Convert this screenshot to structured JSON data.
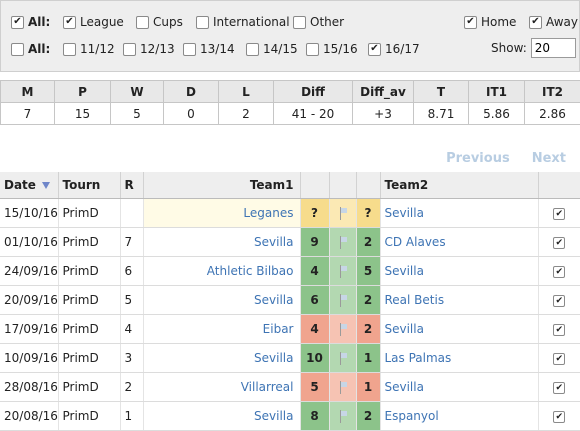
{
  "filters": {
    "row1": {
      "all_label": "All:",
      "league_label": "League",
      "cups_label": "Cups",
      "international_label": "International",
      "other_label": "Other",
      "home_label": "Home",
      "away_label": "Away"
    },
    "row2": {
      "all_label": "All:",
      "seasons": [
        "11/12",
        "12/13",
        "13/14",
        "14/15",
        "15/16",
        "16/17"
      ],
      "show_label": "Show:",
      "show_value": "20"
    },
    "checked": {
      "all_types": true,
      "league": true,
      "cups": false,
      "international": false,
      "other": false,
      "home": true,
      "away": true,
      "all_seasons": false,
      "seasons": [
        false,
        false,
        false,
        false,
        false,
        true
      ]
    }
  },
  "stats": {
    "headers": [
      "M",
      "P",
      "W",
      "D",
      "L",
      "Diff",
      "Diff_av",
      "T",
      "IT1",
      "IT2"
    ],
    "values": [
      "7",
      "15",
      "5",
      "0",
      "2",
      "41 - 20",
      "+3",
      "8.71",
      "5.86",
      "2.86"
    ]
  },
  "pager": {
    "previous": "Previous",
    "next": "Next"
  },
  "matches": {
    "headers": {
      "date": "Date",
      "tourn": "Tourn",
      "round": "R",
      "team1": "Team1",
      "team2": "Team2"
    },
    "rows": [
      {
        "date": "15/10/16",
        "tourn": "PrimD",
        "round": "",
        "team1": "Leganes",
        "s1": "?",
        "s2": "?",
        "team2": "Sevilla",
        "result": "pending"
      },
      {
        "date": "01/10/16",
        "tourn": "PrimD",
        "round": "7",
        "team1": "Sevilla",
        "s1": "9",
        "s2": "2",
        "team2": "CD Alaves",
        "result": "win"
      },
      {
        "date": "24/09/16",
        "tourn": "PrimD",
        "round": "6",
        "team1": "Athletic Bilbao",
        "s1": "4",
        "s2": "5",
        "team2": "Sevilla",
        "result": "win"
      },
      {
        "date": "20/09/16",
        "tourn": "PrimD",
        "round": "5",
        "team1": "Sevilla",
        "s1": "6",
        "s2": "2",
        "team2": "Real Betis",
        "result": "win"
      },
      {
        "date": "17/09/16",
        "tourn": "PrimD",
        "round": "4",
        "team1": "Eibar",
        "s1": "4",
        "s2": "2",
        "team2": "Sevilla",
        "result": "loss"
      },
      {
        "date": "10/09/16",
        "tourn": "PrimD",
        "round": "3",
        "team1": "Sevilla",
        "s1": "10",
        "s2": "1",
        "team2": "Las Palmas",
        "result": "win"
      },
      {
        "date": "28/08/16",
        "tourn": "PrimD",
        "round": "2",
        "team1": "Villarreal",
        "s1": "5",
        "s2": "1",
        "team2": "Sevilla",
        "result": "loss"
      },
      {
        "date": "20/08/16",
        "tourn": "PrimD",
        "round": "1",
        "team1": "Sevilla",
        "s1": "8",
        "s2": "2",
        "team2": "Espanyol",
        "result": "win"
      }
    ]
  },
  "colors": {
    "win": "#8cc38a",
    "win_mid": "#b3d8b1",
    "loss": "#f0a48e",
    "loss_mid": "#f6c3b3",
    "pending": "#f7dc8c",
    "pending_mid": "#fbe9b4",
    "link": "#3e74b4"
  },
  "icons": {
    "check": "check-icon",
    "flag": "flag-icon",
    "sort": "sort-desc-icon"
  }
}
